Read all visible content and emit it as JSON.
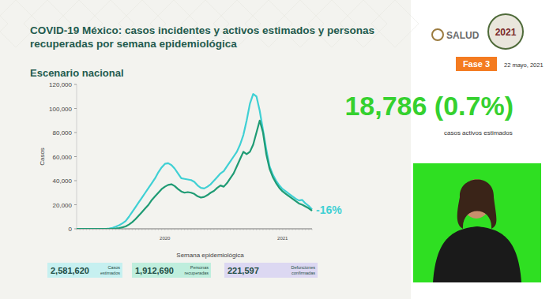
{
  "chart_data": {
    "type": "line",
    "title": "COVID-19 México: casos incidentes y activos estimados y personas recuperadas por semana epidemiológica",
    "subtitle": "Escenario nacional",
    "x_label": "Semana epidemiológica",
    "y_label": "Casos",
    "header": {
      "logo": "SALUD",
      "emblem": "2021",
      "phase": "Fase 3",
      "date": "22 mayo, 2021"
    },
    "highlight": {
      "text": "18,786 (0.7%)",
      "caption": "casos activos estimados",
      "color": "#35d12f"
    },
    "annotations": [
      {
        "text": "-16%",
        "color": "#3fd0d4"
      }
    ],
    "summary": [
      {
        "value": 2581620,
        "label": "2,581,620",
        "text": "Casos estimados",
        "color": "#c6f0f0"
      },
      {
        "value": 1912690,
        "label": "1,912,690",
        "text": "Personas recuperadas",
        "color": "#bfeedd"
      },
      {
        "value": 221597,
        "label": "221,597",
        "text": "Defunciones confirmadas",
        "color": "#dcd8f2"
      }
    ],
    "categories": [
      null,
      null,
      null,
      null,
      null,
      null,
      null,
      null,
      null,
      null,
      null,
      null,
      null,
      null,
      null,
      null,
      null,
      null,
      null,
      null,
      null,
      null,
      null,
      null,
      null,
      null,
      null,
      "2020",
      null,
      null,
      null,
      null,
      null,
      null,
      null,
      null,
      null,
      null,
      null,
      null,
      null,
      null,
      null,
      null,
      null,
      null,
      null,
      null,
      null,
      null,
      null,
      null,
      null,
      null,
      null,
      null,
      null,
      null,
      null,
      null,
      null,
      null,
      null,
      "2021",
      null,
      null,
      null,
      null,
      null,
      null,
      null,
      null,
      null
    ],
    "series": [
      {
        "color": "#3fd0d4",
        "values": [
          0,
          0,
          0,
          0,
          0,
          0,
          0,
          0,
          0,
          0,
          200,
          800,
          1800,
          3000,
          4500,
          6500,
          10000,
          14000,
          18000,
          22000,
          26000,
          30000,
          34000,
          38000,
          42000,
          47000,
          51000,
          54000,
          54500,
          53000,
          50000,
          46000,
          42000,
          41500,
          41000,
          40500,
          39000,
          36000,
          34000,
          33500,
          35000,
          37000,
          40000,
          43000,
          46000,
          48000,
          52000,
          56000,
          60000,
          64000,
          70000,
          78000,
          90000,
          104000,
          112000,
          110000,
          98000,
          82000,
          66000,
          52000,
          45000,
          40000,
          36000,
          33000,
          31000,
          29000,
          27000,
          25000,
          23500,
          24000,
          21000,
          19000,
          16000
        ]
      },
      {
        "color": "#1f9b74",
        "values": [
          0,
          0,
          0,
          0,
          0,
          0,
          0,
          0,
          0,
          0,
          0,
          0,
          200,
          600,
          1200,
          2000,
          3500,
          5500,
          8000,
          11000,
          14000,
          17000,
          20000,
          24000,
          27000,
          30000,
          33000,
          35000,
          36500,
          37000,
          35500,
          33000,
          31000,
          30000,
          30500,
          30000,
          29000,
          27000,
          26000,
          26500,
          28000,
          30000,
          31500,
          34000,
          36000,
          35000,
          38000,
          42000,
          46000,
          52000,
          58000,
          64000,
          62000,
          64000,
          70000,
          80000,
          90000,
          80000,
          62000,
          50000,
          43000,
          38000,
          34000,
          31000,
          29000,
          27000,
          25000,
          23000,
          21000,
          20000,
          18500,
          17000,
          15000
        ]
      }
    ],
    "ylim": [
      0,
      120000
    ],
    "yticks": [
      0,
      {
        "value": 20000,
        "label": "20,000"
      },
      {
        "value": 40000,
        "label": "40,000"
      },
      {
        "value": 60000,
        "label": "60,000"
      },
      {
        "value": 80000,
        "label": "80,000"
      },
      {
        "value": 100000,
        "label": "100,000"
      },
      {
        "value": 120000,
        "label": "120,000"
      }
    ],
    "grid": false
  }
}
